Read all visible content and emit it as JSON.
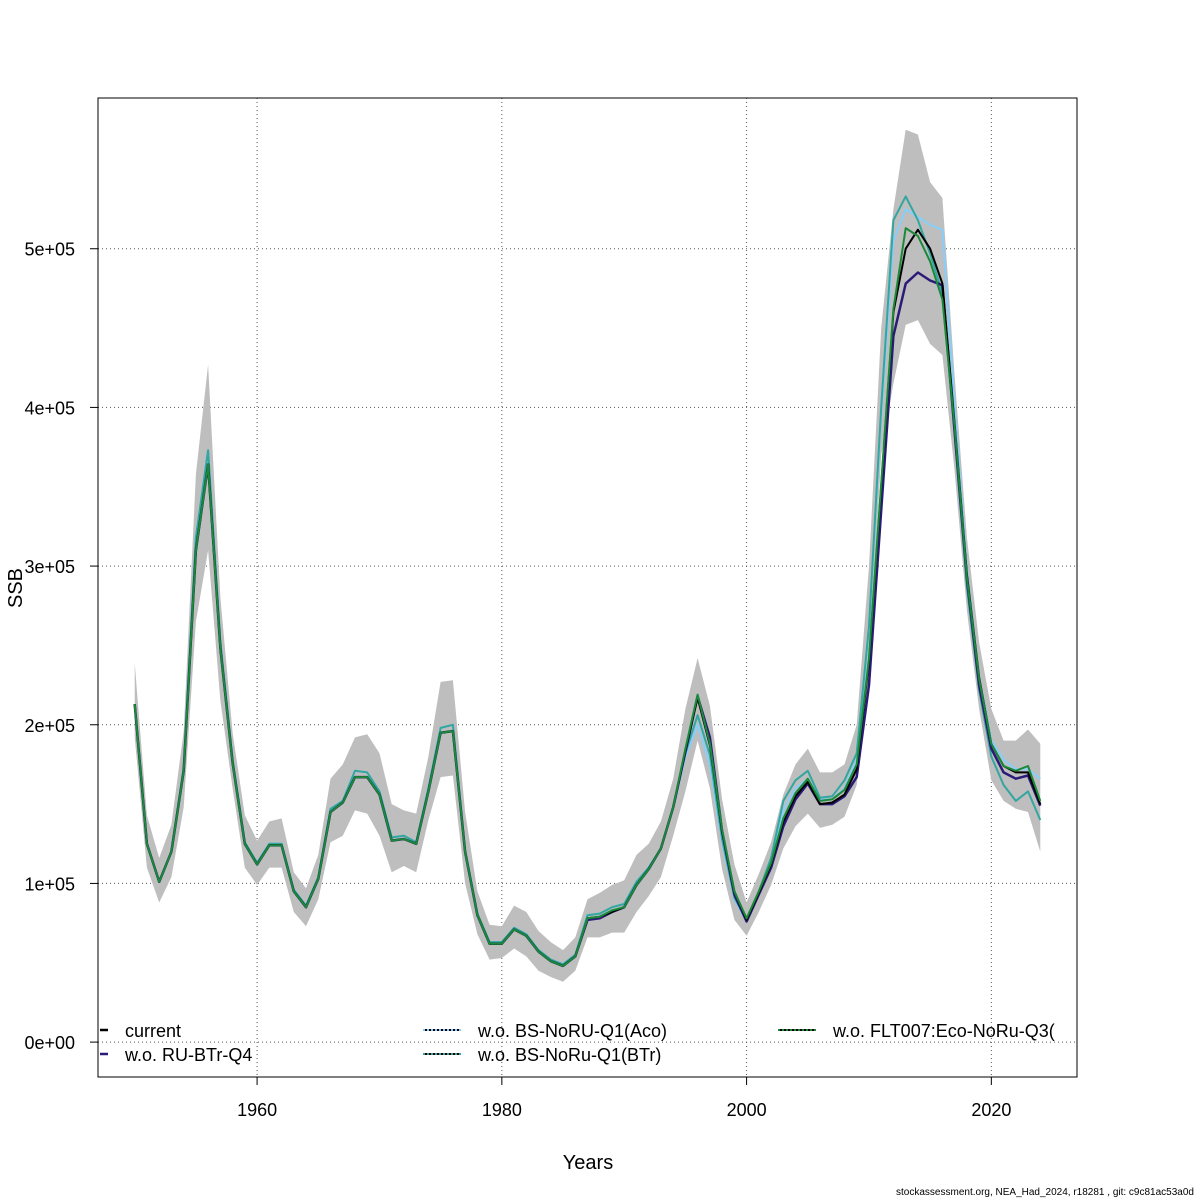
{
  "chart_data": {
    "type": "line",
    "xlabel": "Years",
    "ylabel": "SSB",
    "xlim": [
      1947,
      2027
    ],
    "ylim": [
      -22000,
      595000
    ],
    "xticks": [
      1960,
      1980,
      2000,
      2020
    ],
    "yticks": [
      0,
      100000,
      200000,
      300000,
      400000,
      500000
    ],
    "ytick_labels": [
      "0e+00",
      "1e+05",
      "2e+05",
      "3e+05",
      "4e+05",
      "5e+05"
    ],
    "grid": true,
    "legend_position": "bottom",
    "x": [
      1950,
      1951,
      1952,
      1953,
      1954,
      1955,
      1956,
      1957,
      1958,
      1959,
      1960,
      1961,
      1962,
      1963,
      1964,
      1965,
      1966,
      1967,
      1968,
      1969,
      1970,
      1971,
      1972,
      1973,
      1974,
      1975,
      1976,
      1977,
      1978,
      1979,
      1980,
      1981,
      1982,
      1983,
      1984,
      1985,
      1986,
      1987,
      1988,
      1989,
      1990,
      1991,
      1992,
      1993,
      1994,
      1995,
      1996,
      1997,
      1998,
      1999,
      2000,
      2001,
      2002,
      2003,
      2004,
      2005,
      2006,
      2007,
      2008,
      2009,
      2010,
      2011,
      2012,
      2013,
      2014,
      2015,
      2016,
      2017,
      2018,
      2019,
      2020,
      2021,
      2022,
      2023,
      2024
    ],
    "band": {
      "color": "#bebebe",
      "lower": [
        192000,
        110000,
        88000,
        104000,
        148000,
        265000,
        310000,
        215000,
        160000,
        110000,
        99000,
        110000,
        110000,
        82000,
        73000,
        90000,
        126000,
        130000,
        146000,
        144000,
        130000,
        107000,
        111000,
        107000,
        140000,
        167000,
        168000,
        100000,
        68000,
        52000,
        53000,
        59000,
        54000,
        45000,
        41000,
        38000,
        45000,
        66000,
        66000,
        69000,
        69000,
        82000,
        92000,
        104000,
        130000,
        158000,
        190000,
        160000,
        109000,
        77000,
        67000,
        82000,
        99000,
        122000,
        136000,
        144000,
        135000,
        137000,
        142000,
        162000,
        230000,
        370000,
        415000,
        452000,
        455000,
        440000,
        433000,
        360000,
        272000,
        210000,
        165000,
        152000,
        147000,
        145000,
        120000
      ],
      "upper": [
        239000,
        143000,
        116000,
        137000,
        196000,
        358000,
        427000,
        280000,
        195000,
        143000,
        127000,
        139000,
        141000,
        107000,
        97000,
        118000,
        166000,
        175000,
        192000,
        194000,
        182000,
        150000,
        146000,
        144000,
        180000,
        227000,
        228000,
        145000,
        95000,
        74000,
        73000,
        86000,
        82000,
        70000,
        63000,
        58000,
        66000,
        90000,
        94000,
        99000,
        102000,
        118000,
        125000,
        139000,
        166000,
        210000,
        242000,
        212000,
        153000,
        112000,
        88000,
        106000,
        126000,
        156000,
        175000,
        185000,
        170000,
        170000,
        175000,
        200000,
        300000,
        450000,
        525000,
        575000,
        572000,
        542000,
        532000,
        420000,
        318000,
        252000,
        210000,
        190000,
        190000,
        197000,
        188000
      ]
    },
    "series": [
      {
        "name": "current",
        "color": "#000000",
        "dash": "none",
        "width": 2,
        "values": [
          213000,
          125000,
          101000,
          120000,
          171000,
          310000,
          364000,
          248000,
          176000,
          125000,
          112000,
          124000,
          124000,
          95000,
          85000,
          103000,
          145000,
          151000,
          167000,
          167000,
          156000,
          127000,
          128000,
          125000,
          158000,
          195000,
          196000,
          120000,
          80000,
          62000,
          62000,
          71000,
          67000,
          57000,
          51000,
          48000,
          54000,
          78000,
          79000,
          82000,
          85000,
          99000,
          109000,
          122000,
          148000,
          184000,
          217000,
          187000,
          133000,
          95000,
          77000,
          94000,
          112000,
          139000,
          155000,
          164000,
          150000,
          151000,
          156000,
          172000,
          240000,
          350000,
          460000,
          500000,
          512000,
          500000,
          478000,
          390000,
          295000,
          230000,
          188000,
          174000,
          170000,
          170000,
          150000
        ]
      },
      {
        "name": "w.o. RU-BTr-Q4",
        "color": "#2b1a78",
        "dash": "none",
        "width": 2.5,
        "values": [
          213000,
          125000,
          101000,
          120000,
          171000,
          310000,
          364000,
          248000,
          176000,
          125000,
          112000,
          124000,
          124000,
          95000,
          85000,
          103000,
          145000,
          151000,
          167000,
          167000,
          156000,
          127000,
          128000,
          125000,
          158000,
          195000,
          196000,
          120000,
          80000,
          62000,
          62000,
          71000,
          67000,
          57000,
          51000,
          48000,
          54000,
          77000,
          78000,
          82000,
          85000,
          99000,
          109000,
          122000,
          148000,
          183000,
          218000,
          192000,
          133000,
          93000,
          76000,
          93000,
          110000,
          136000,
          153000,
          163000,
          150000,
          150000,
          155000,
          167000,
          225000,
          335000,
          445000,
          478000,
          485000,
          480000,
          477000,
          385000,
          292000,
          225000,
          185000,
          170000,
          166000,
          168000,
          149000
        ]
      },
      {
        "name": "w.o. BS-NoRU-Q1(Aco)",
        "color": "#87cefa",
        "dash": "none",
        "width": 2,
        "values": [
          213000,
          125000,
          101000,
          120000,
          173000,
          318000,
          373000,
          252000,
          178000,
          126000,
          113000,
          125000,
          125000,
          96000,
          86000,
          104000,
          147000,
          152000,
          171000,
          170000,
          158000,
          129000,
          130000,
          126000,
          160000,
          198000,
          200000,
          121000,
          81000,
          63000,
          63000,
          72000,
          68000,
          58000,
          52000,
          49000,
          55000,
          80000,
          81000,
          85000,
          87000,
          101000,
          110000,
          122000,
          148000,
          180000,
          200000,
          175000,
          126000,
          90000,
          76000,
          94000,
          114000,
          146000,
          160000,
          166000,
          153000,
          153000,
          160000,
          178000,
          260000,
          395000,
          505000,
          525000,
          520000,
          515000,
          512000,
          402000,
          298000,
          230000,
          190000,
          178000,
          172000,
          172000,
          166000
        ]
      },
      {
        "name": "w.o. BS-NoRu-Q1(BTr)",
        "color": "#33a6a0",
        "dash": "none",
        "width": 2,
        "values": [
          213000,
          125000,
          101000,
          120000,
          173000,
          318000,
          373000,
          252000,
          178000,
          126000,
          113000,
          125000,
          125000,
          96000,
          86000,
          104000,
          147000,
          152000,
          171000,
          170000,
          158000,
          129000,
          130000,
          126000,
          160000,
          198000,
          200000,
          121000,
          81000,
          63000,
          63000,
          72000,
          68000,
          58000,
          52000,
          49000,
          55000,
          80000,
          81000,
          85000,
          87000,
          101000,
          110000,
          122000,
          148000,
          182000,
          206000,
          181000,
          128000,
          91000,
          77000,
          95000,
          116000,
          152000,
          165000,
          171000,
          154000,
          155000,
          165000,
          182000,
          262000,
          400000,
          518000,
          533000,
          518000,
          497000,
          472000,
          383000,
          287000,
          222000,
          180000,
          162000,
          152000,
          158000,
          140000
        ]
      },
      {
        "name": "w.o. FLT007:Eco-NoRu-Q3(",
        "color": "#1a8a3a",
        "dash": "none",
        "width": 2,
        "values": [
          213000,
          125000,
          101000,
          120000,
          171000,
          310000,
          364000,
          248000,
          176000,
          125000,
          112000,
          124000,
          124000,
          95000,
          85000,
          103000,
          145000,
          151000,
          167000,
          167000,
          156000,
          127000,
          128000,
          125000,
          158000,
          195000,
          196000,
          120000,
          80000,
          62000,
          62000,
          71000,
          67000,
          57000,
          51000,
          48000,
          54000,
          78000,
          79000,
          83000,
          85000,
          99000,
          109000,
          122000,
          148000,
          185000,
          219000,
          188000,
          134000,
          95000,
          78000,
          95000,
          113000,
          141000,
          157000,
          166000,
          152000,
          153000,
          159000,
          175000,
          242000,
          352000,
          462000,
          513000,
          508000,
          492000,
          468000,
          388000,
          293000,
          229000,
          188000,
          174000,
          171000,
          174000,
          152000
        ]
      }
    ],
    "legend": [
      {
        "label": "current",
        "color": "#000000",
        "dash": "none"
      },
      {
        "label": "w.o. RU-BTr-Q4",
        "color": "#2b1a78",
        "dash": "none"
      },
      {
        "label": "w.o. BS-NoRU-Q1(Aco)",
        "color": "#87cefa",
        "dash": "dotted"
      },
      {
        "label": "w.o. BS-NoRu-Q1(BTr)",
        "color": "#33a6a0",
        "dash": "dotted"
      },
      {
        "label": "w.o. FLT007:Eco-NoRu-Q3(",
        "color": "#1a8a3a",
        "dash": "dotted"
      }
    ]
  },
  "footer": "stockassessment.org, NEA_Had_2024, r18281 , git: c9c81ac53a0d"
}
